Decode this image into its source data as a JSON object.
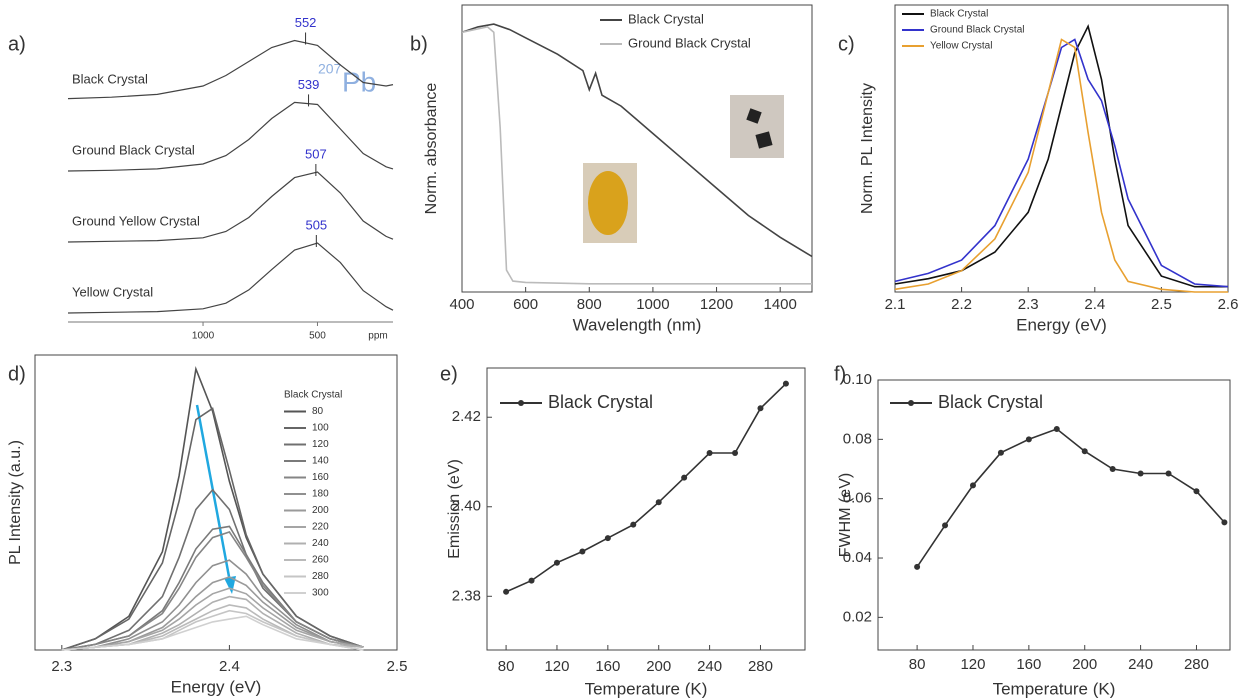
{
  "chart_data": [
    {
      "type": "spectra",
      "label": "a)",
      "annotation": {
        "superscript": "207",
        "text": "Pb"
      },
      "x_unit": "ppm",
      "xlim": [
        1590,
        170
      ],
      "xticks": [
        1000,
        500
      ],
      "x": [
        1590,
        1400,
        1200,
        1000,
        900,
        800,
        700,
        600,
        500,
        400,
        300,
        200,
        170
      ],
      "series": [
        {
          "name": "Black Crystal",
          "color": "#444444",
          "peak": 552,
          "values": [
            0.02,
            0.04,
            0.08,
            0.2,
            0.35,
            0.55,
            0.75,
            0.85,
            0.78,
            0.5,
            0.25,
            0.2,
            0.22
          ]
        },
        {
          "name": "Ground Black Crystal",
          "color": "#444444",
          "peak": 539,
          "values": [
            0,
            0.01,
            0.03,
            0.1,
            0.22,
            0.45,
            0.75,
            0.98,
            0.95,
            0.6,
            0.25,
            0.06,
            0.03
          ]
        },
        {
          "name": "Ground Yellow Crystal",
          "color": "#444444",
          "peak": 507,
          "values": [
            0,
            0.01,
            0.02,
            0.06,
            0.15,
            0.35,
            0.65,
            0.92,
            1.0,
            0.7,
            0.3,
            0.08,
            0.04
          ]
        },
        {
          "name": "Yellow Crystal",
          "color": "#444444",
          "peak": 505,
          "values": [
            0,
            0.01,
            0.02,
            0.06,
            0.14,
            0.33,
            0.62,
            0.9,
            1.0,
            0.72,
            0.32,
            0.09,
            0.04
          ]
        }
      ]
    },
    {
      "type": "line",
      "label": "b)",
      "x_label": "Wavelength (nm)",
      "y_label": "Norm. absorbance",
      "legend": "upper right",
      "xlim": [
        400,
        1500
      ],
      "xticks": [
        400,
        600,
        800,
        1000,
        1200,
        1400
      ],
      "ylim": [
        0,
        1.05
      ],
      "series": [
        {
          "name": "Black Crystal",
          "color": "#444444",
          "x": [
            400,
            450,
            500,
            550,
            600,
            700,
            780,
            800,
            820,
            840,
            900,
            1000,
            1100,
            1200,
            1300,
            1400,
            1500
          ],
          "values": [
            0.95,
            0.97,
            0.98,
            0.96,
            0.93,
            0.87,
            0.81,
            0.74,
            0.8,
            0.72,
            0.68,
            0.58,
            0.48,
            0.38,
            0.28,
            0.2,
            0.13
          ]
        },
        {
          "name": "Ground Black Crystal",
          "color": "#bbbbbb",
          "x": [
            400,
            480,
            500,
            520,
            540,
            560,
            600,
            800,
            1000,
            1500
          ],
          "values": [
            0.95,
            0.97,
            0.95,
            0.6,
            0.08,
            0.04,
            0.035,
            0.03,
            0.03,
            0.03
          ]
        }
      ]
    },
    {
      "type": "line",
      "label": "c)",
      "x_label": "Energy (eV)",
      "y_label": "Norm. PL Intensity",
      "legend": "upper left",
      "xlim": [
        2.1,
        2.6
      ],
      "xticks": [
        2.1,
        2.2,
        2.3,
        2.4,
        2.5,
        2.6
      ],
      "ylim": [
        0,
        1.08
      ],
      "x": [
        2.1,
        2.15,
        2.2,
        2.25,
        2.3,
        2.33,
        2.35,
        2.37,
        2.39,
        2.41,
        2.43,
        2.45,
        2.5,
        2.55,
        2.6
      ],
      "series": [
        {
          "name": "Black Crystal",
          "color": "#111111",
          "values": [
            0.03,
            0.05,
            0.08,
            0.15,
            0.3,
            0.5,
            0.7,
            0.9,
            1.0,
            0.8,
            0.5,
            0.25,
            0.06,
            0.02,
            0.02
          ]
        },
        {
          "name": "Ground Black Crystal",
          "color": "#3333cc",
          "values": [
            0.04,
            0.07,
            0.12,
            0.25,
            0.5,
            0.75,
            0.92,
            0.95,
            0.8,
            0.72,
            0.55,
            0.35,
            0.1,
            0.03,
            0.02
          ]
        },
        {
          "name": "Yellow Crystal",
          "color": "#e8a030",
          "values": [
            0.01,
            0.03,
            0.08,
            0.2,
            0.45,
            0.75,
            0.95,
            0.92,
            0.6,
            0.3,
            0.12,
            0.04,
            0.01,
            0,
            0
          ]
        }
      ]
    },
    {
      "type": "line",
      "label": "d)",
      "x_label": "Energy (eV)",
      "y_label": "PL Intensity (a.u.)",
      "legend": "right",
      "legend_title": "Black Crystal",
      "xlim": [
        2.284,
        2.5
      ],
      "xticks": [
        2.3,
        2.4,
        2.5
      ],
      "ylim": [
        0,
        1.05
      ],
      "x": [
        2.3,
        2.32,
        2.34,
        2.36,
        2.37,
        2.38,
        2.39,
        2.4,
        2.41,
        2.42,
        2.44,
        2.46,
        2.48
      ],
      "series": [
        {
          "name": "80",
          "color": "#555555",
          "values": [
            0,
            0.04,
            0.12,
            0.35,
            0.62,
            1.0,
            0.85,
            0.6,
            0.4,
            0.27,
            0.12,
            0.05,
            0.01
          ]
        },
        {
          "name": "100",
          "color": "#666666",
          "values": [
            0,
            0.04,
            0.11,
            0.31,
            0.53,
            0.82,
            0.86,
            0.64,
            0.41,
            0.27,
            0.12,
            0.05,
            0.01
          ]
        },
        {
          "name": "120",
          "color": "#707070",
          "values": [
            0,
            0.02,
            0.07,
            0.19,
            0.33,
            0.5,
            0.57,
            0.5,
            0.34,
            0.22,
            0.1,
            0.04,
            0.01
          ]
        },
        {
          "name": "140",
          "color": "#7a7a7a",
          "values": [
            0,
            0.02,
            0.05,
            0.14,
            0.24,
            0.36,
            0.43,
            0.44,
            0.34,
            0.24,
            0.1,
            0.04,
            0.01
          ]
        },
        {
          "name": "160",
          "color": "#858585",
          "values": [
            0,
            0.02,
            0.05,
            0.13,
            0.22,
            0.33,
            0.4,
            0.42,
            0.33,
            0.23,
            0.1,
            0.04,
            0.01
          ]
        },
        {
          "name": "180",
          "color": "#909090",
          "values": [
            0,
            0.01,
            0.04,
            0.1,
            0.16,
            0.24,
            0.3,
            0.32,
            0.27,
            0.19,
            0.09,
            0.03,
            0.01
          ]
        },
        {
          "name": "200",
          "color": "#9a9a9a",
          "values": [
            0,
            0.01,
            0.03,
            0.08,
            0.13,
            0.19,
            0.24,
            0.26,
            0.23,
            0.17,
            0.08,
            0.03,
            0.01
          ]
        },
        {
          "name": "220",
          "color": "#a5a5a5",
          "values": [
            0,
            0.01,
            0.03,
            0.07,
            0.11,
            0.16,
            0.2,
            0.22,
            0.2,
            0.15,
            0.07,
            0.03,
            0.01
          ]
        },
        {
          "name": "240",
          "color": "#b0b0b0",
          "values": [
            0,
            0.01,
            0.02,
            0.06,
            0.09,
            0.13,
            0.17,
            0.19,
            0.18,
            0.13,
            0.06,
            0.02,
            0.01
          ]
        },
        {
          "name": "260",
          "color": "#bababa",
          "values": [
            0,
            0.01,
            0.02,
            0.05,
            0.08,
            0.11,
            0.14,
            0.16,
            0.15,
            0.11,
            0.05,
            0.02,
            0
          ]
        },
        {
          "name": "280",
          "color": "#c5c5c5",
          "values": [
            0,
            0.01,
            0.02,
            0.04,
            0.07,
            0.1,
            0.12,
            0.14,
            0.13,
            0.1,
            0.05,
            0.02,
            0
          ]
        },
        {
          "name": "300",
          "color": "#d0d0d0",
          "values": [
            0,
            0.01,
            0.02,
            0.04,
            0.06,
            0.08,
            0.1,
            0.11,
            0.12,
            0.09,
            0.04,
            0.02,
            0
          ]
        }
      ]
    },
    {
      "type": "line",
      "label": "e)",
      "x_label": "Temperature (K)",
      "y_label": "Emission (eV)",
      "legend": "upper left",
      "markers": true,
      "xlim": [
        65,
        315
      ],
      "xticks": [
        80,
        120,
        160,
        200,
        240,
        280
      ],
      "ylim": [
        2.368,
        2.431
      ],
      "yticks": [
        2.38,
        {
          "value": 2.4,
          "label": "2.40"
        },
        2.42
      ],
      "x": [
        80,
        100,
        120,
        140,
        160,
        180,
        200,
        220,
        240,
        260,
        280,
        300
      ],
      "series": [
        {
          "name": "Black Crystal",
          "color": "#333333",
          "values": [
            2.381,
            2.3835,
            2.3875,
            2.39,
            2.393,
            2.396,
            2.401,
            2.4065,
            2.412,
            2.412,
            2.422,
            2.4275
          ]
        }
      ]
    },
    {
      "type": "line",
      "label": "f)",
      "x_label": "Temperature (K)",
      "y_label": "FWHM (eV)",
      "legend": "upper left",
      "markers": true,
      "xlim": [
        52,
        304
      ],
      "xticks": [
        80,
        120,
        160,
        200,
        240,
        280
      ],
      "ylim": [
        0.009,
        0.1
      ],
      "yticks": [
        0.02,
        0.04,
        0.06,
        0.08,
        {
          "value": 0.1,
          "label": "0.10"
        }
      ],
      "x": [
        80,
        100,
        120,
        140,
        160,
        180,
        200,
        220,
        240,
        260,
        280,
        300
      ],
      "series": [
        {
          "name": "Black Crystal",
          "color": "#333333",
          "values": [
            0.037,
            0.051,
            0.0645,
            0.0755,
            0.08,
            0.0835,
            0.076,
            0.07,
            0.0685,
            0.0685,
            0.0625,
            0.052
          ]
        }
      ]
    }
  ]
}
